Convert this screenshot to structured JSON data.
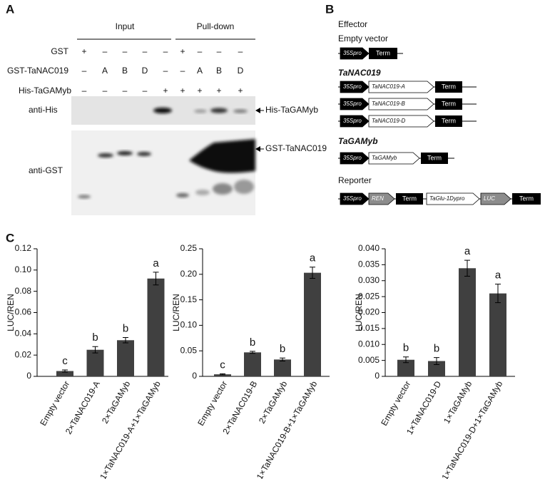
{
  "panel_a": {
    "label": "A",
    "groups": [
      "Input",
      "Pull-down"
    ],
    "rows": [
      {
        "name": "GST",
        "entries": [
          "+",
          "–",
          "–",
          "–",
          "–",
          "+",
          "–",
          "–",
          "–"
        ]
      },
      {
        "name": "GST-TaNAC019",
        "entries": [
          "–",
          "A",
          "B",
          "D",
          "–",
          "–",
          "A",
          "B",
          "D"
        ]
      },
      {
        "name": "His-TaGAMyb",
        "entries": [
          "–",
          "–",
          "–",
          "–",
          "+",
          "+",
          "+",
          "+",
          "+"
        ]
      }
    ],
    "blots": [
      {
        "name": "anti-His",
        "target": "His-TaGAMyb"
      },
      {
        "name": "anti-GST",
        "target": "GST-TaNAC019"
      }
    ]
  },
  "panel_b": {
    "label": "B",
    "heading": "Effector",
    "groups": [
      {
        "title": "Empty vector",
        "rows": [
          [
            "35Spro",
            "Term"
          ]
        ]
      },
      {
        "title": "TaNAC019",
        "rows": [
          [
            "35Spro",
            "TaNAC019-A",
            "Term"
          ],
          [
            "35Spro",
            "TaNAC019-B",
            "Term"
          ],
          [
            "35Spro",
            "TaNAC019-D",
            "Term"
          ]
        ]
      },
      {
        "title": "TaGAMyb",
        "rows": [
          [
            "35Spro",
            "TaGAMyb",
            "Term"
          ]
        ]
      },
      {
        "title": "Reporter",
        "rows": [
          [
            "35Spro",
            "REN",
            "Term",
            "TaGlu-1Dypro",
            "LUC",
            "Term"
          ]
        ]
      }
    ]
  },
  "panel_c": {
    "label": "C"
  },
  "chart_data": [
    {
      "type": "bar",
      "ylabel": "LUC/REN",
      "color": "#404040",
      "categories": [
        "Empty vector",
        "2×TaNAC019-A",
        "2×TaGAMyb",
        "1×TaNAC019-A+1×TaGAMyb"
      ],
      "values": [
        0.005,
        0.025,
        0.034,
        0.092
      ],
      "errors": [
        0.001,
        0.003,
        0.0025,
        0.006
      ],
      "annotations": [
        "c",
        "b",
        "b",
        "a"
      ],
      "ylim": [
        0,
        0.12
      ],
      "yticks": [
        0,
        0.02,
        0.04,
        0.06,
        0.08,
        {
          "value": 0.1,
          "label": "0.10"
        },
        0.12
      ]
    },
    {
      "type": "bar",
      "ylabel": "LUC/REN",
      "color": "#404040",
      "categories": [
        "Empty vector",
        "2×TaNAC019-B",
        "2×TaGAMyb",
        "1×TaNAC019-B+1×TaGAMyb"
      ],
      "values": [
        0.004,
        0.047,
        0.033,
        0.203
      ],
      "errors": [
        0.001,
        0.002,
        0.003,
        0.011
      ],
      "annotations": [
        "c",
        "b",
        "b",
        "a"
      ],
      "ylim": [
        0,
        0.25
      ],
      "yticks": [
        0,
        0.05,
        {
          "value": 0.1,
          "label": "0.10"
        },
        0.15,
        {
          "value": 0.2,
          "label": "0.20"
        },
        0.25
      ]
    },
    {
      "type": "bar",
      "ylabel": "LUC/REN",
      "color": "#404040",
      "categories": [
        "Empty vector",
        "1×TaNAC019-D",
        "1×TaGAMyb",
        "1×TaNAC019-D+1×TaGAMyb"
      ],
      "values": [
        0.0052,
        0.0048,
        0.0339,
        0.026
      ],
      "errors": [
        0.0009,
        0.0011,
        0.0025,
        0.0029
      ],
      "annotations": [
        "b",
        "b",
        "a",
        "a"
      ],
      "ylim": [
        0,
        0.04
      ],
      "yticks": [
        0,
        0.005,
        {
          "value": 0.01,
          "label": "0.010"
        },
        0.015,
        {
          "value": 0.02,
          "label": "0.020"
        },
        0.025,
        {
          "value": 0.03,
          "label": "0.030"
        },
        0.035,
        {
          "value": 0.04,
          "label": "0.040"
        }
      ]
    }
  ]
}
